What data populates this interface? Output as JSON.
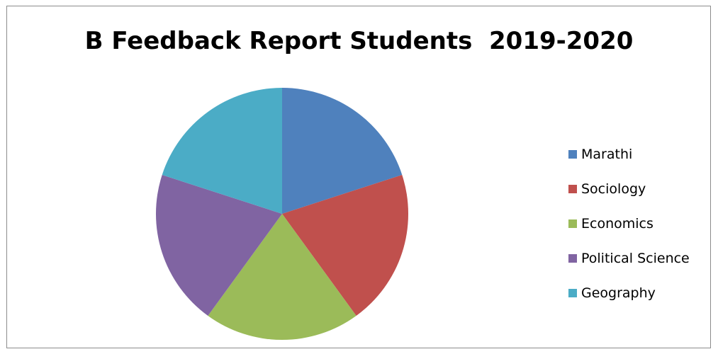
{
  "chart_data": {
    "type": "pie",
    "title": "B Feedback Report Students  2019-2020",
    "categories": [
      "Marathi",
      "Sociology",
      "Economics",
      "Political Science",
      "Geography"
    ],
    "values": [
      20,
      20,
      20,
      20,
      20
    ],
    "colors": [
      "#4f81bd",
      "#c0504d",
      "#9bbb59",
      "#8064a2",
      "#4bacc6"
    ],
    "legend_position": "right",
    "start_angle": "12 o'clock",
    "direction": "clockwise"
  }
}
